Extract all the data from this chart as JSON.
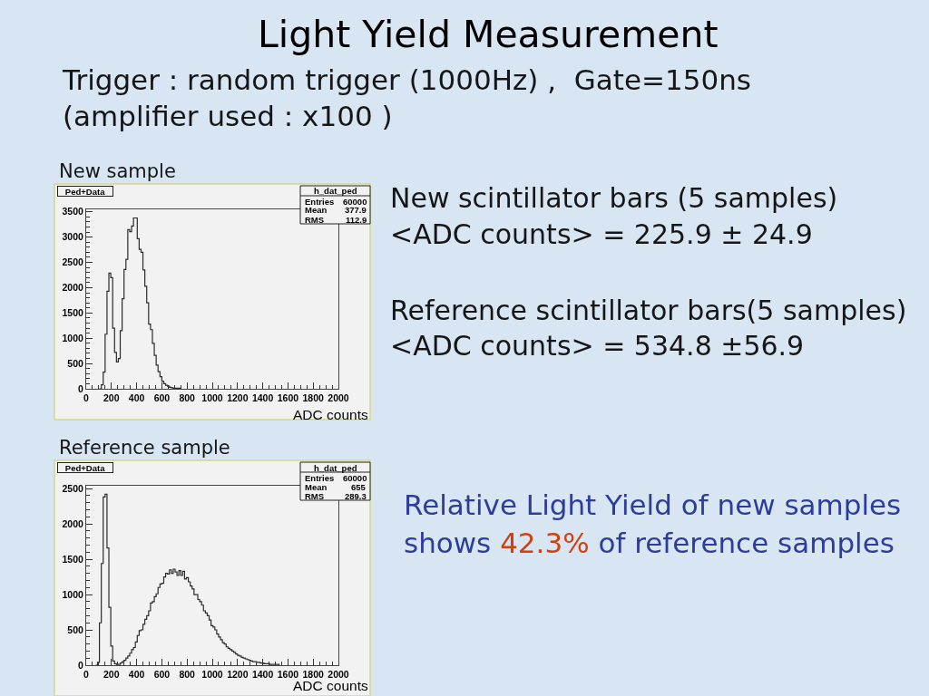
{
  "chart_data": [
    {
      "type": "other",
      "title": "Light Yield Measurement",
      "subtitle": "Trigger : random trigger (1000Hz) ,  Gate=150ns\n(amplifier used : x100 )",
      "annotations": [
        "New scintillator bars (5 samples)",
        "<ADC counts> = 225.9 ± 24.9",
        "Reference scintillator bars(5 samples)",
        "<ADC counts> = 534.8 ±56.9",
        "Relative Light Yield of new samples",
        "shows",
        "42.3%",
        "of reference samples"
      ]
    },
    {
      "type": "step",
      "title": "New sample",
      "subtitle": "Ped+Data",
      "xlabel": "ADC counts",
      "annotations": [
        "h_dat_ped",
        "Entries 60000",
        "Mean 377.9",
        "RMS 112.9"
      ],
      "x": [
        105,
        120,
        135,
        150,
        165,
        180,
        195,
        210,
        225,
        240,
        255,
        270,
        285,
        300,
        315,
        330,
        345,
        360,
        375,
        390,
        405,
        420,
        435,
        450,
        465,
        480,
        495,
        510,
        525,
        540,
        555,
        570,
        585,
        600,
        615,
        630,
        645,
        660,
        675,
        690,
        705,
        720,
        735,
        750
      ],
      "values": [
        0,
        80,
        330,
        1080,
        1930,
        2290,
        2200,
        1200,
        720,
        530,
        600,
        1150,
        1780,
        2360,
        2560,
        3150,
        3110,
        3220,
        3380,
        3380,
        2970,
        2760,
        2700,
        2350,
        2030,
        1700,
        1280,
        1170,
        900,
        660,
        470,
        340,
        240,
        150,
        100,
        70,
        50,
        30,
        20,
        10,
        10,
        10,
        10,
        0
      ],
      "color": "#2b2b2b",
      "grid": false,
      "xlim": [
        0,
        2000
      ],
      "ylim": [
        0,
        3550
      ],
      "xticks": [
        0,
        {
          "value": 50,
          "label": null
        },
        {
          "value": 100,
          "label": null
        },
        {
          "value": 150,
          "label": null
        },
        200,
        {
          "value": 250,
          "label": null
        },
        {
          "value": 300,
          "label": null
        },
        {
          "value": 350,
          "label": null
        },
        400,
        {
          "value": 450,
          "label": null
        },
        {
          "value": 500,
          "label": null
        },
        {
          "value": 550,
          "label": null
        },
        600,
        {
          "value": 650,
          "label": null
        },
        {
          "value": 700,
          "label": null
        },
        {
          "value": 750,
          "label": null
        },
        800,
        {
          "value": 850,
          "label": null
        },
        {
          "value": 900,
          "label": null
        },
        {
          "value": 950,
          "label": null
        },
        1000,
        {
          "value": 1050,
          "label": null
        },
        {
          "value": 1100,
          "label": null
        },
        {
          "value": 1150,
          "label": null
        },
        1200,
        {
          "value": 1250,
          "label": null
        },
        {
          "value": 1300,
          "label": null
        },
        {
          "value": 1350,
          "label": null
        },
        1400,
        {
          "value": 1450,
          "label": null
        },
        {
          "value": 1500,
          "label": null
        },
        {
          "value": 1550,
          "label": null
        },
        1600,
        {
          "value": 1650,
          "label": null
        },
        {
          "value": 1700,
          "label": null
        },
        {
          "value": 1750,
          "label": null
        },
        1800,
        {
          "value": 1850,
          "label": null
        },
        {
          "value": 1900,
          "label": null
        },
        {
          "value": 1950,
          "label": null
        },
        2000
      ],
      "yticks": [
        0,
        {
          "value": 100,
          "label": null
        },
        {
          "value": 200,
          "label": null
        },
        {
          "value": 300,
          "label": null
        },
        {
          "value": 400,
          "label": null
        },
        500,
        {
          "value": 600,
          "label": null
        },
        {
          "value": 700,
          "label": null
        },
        {
          "value": 800,
          "label": null
        },
        {
          "value": 900,
          "label": null
        },
        1000,
        {
          "value": 1100,
          "label": null
        },
        {
          "value": 1200,
          "label": null
        },
        {
          "value": 1300,
          "label": null
        },
        {
          "value": 1400,
          "label": null
        },
        1500,
        {
          "value": 1600,
          "label": null
        },
        {
          "value": 1700,
          "label": null
        },
        {
          "value": 1800,
          "label": null
        },
        {
          "value": 1900,
          "label": null
        },
        2000,
        {
          "value": 2100,
          "label": null
        },
        {
          "value": 2200,
          "label": null
        },
        {
          "value": 2300,
          "label": null
        },
        {
          "value": 2400,
          "label": null
        },
        2500,
        {
          "value": 2600,
          "label": null
        },
        {
          "value": 2700,
          "label": null
        },
        {
          "value": 2800,
          "label": null
        },
        {
          "value": 2900,
          "label": null
        },
        3000,
        {
          "value": 3100,
          "label": null
        },
        {
          "value": 3200,
          "label": null
        },
        {
          "value": 3300,
          "label": null
        },
        {
          "value": 3400,
          "label": null
        },
        3500
      ]
    },
    {
      "type": "step",
      "title": "Reference sample",
      "subtitle": "Ped+Data",
      "xlabel": "ADC counts",
      "annotations": [
        "h_dat_ped",
        "Entries 60000",
        "Mean 655",
        "RMS 289.3"
      ],
      "x": [
        75,
        90,
        105,
        120,
        135,
        150,
        165,
        180,
        195,
        210,
        225,
        240,
        255,
        270,
        285,
        300,
        315,
        330,
        345,
        360,
        375,
        390,
        405,
        420,
        435,
        450,
        465,
        480,
        495,
        510,
        525,
        540,
        555,
        570,
        585,
        600,
        615,
        630,
        645,
        660,
        675,
        690,
        705,
        720,
        735,
        750,
        765,
        780,
        795,
        810,
        825,
        840,
        855,
        870,
        885,
        900,
        915,
        930,
        945,
        960,
        975,
        990,
        1005,
        1020,
        1035,
        1050,
        1065,
        1080,
        1095,
        1110,
        1125,
        1140,
        1155,
        1170,
        1185,
        1200,
        1215,
        1230,
        1245,
        1260,
        1275,
        1290,
        1305,
        1320,
        1335,
        1350,
        1365,
        1380,
        1395,
        1410,
        1425,
        1440,
        1455,
        1470,
        1485,
        1500,
        1515,
        1530
      ],
      "values": [
        0,
        40,
        600,
        1440,
        2380,
        2420,
        1660,
        820,
        270,
        60,
        20,
        10,
        10,
        30,
        50,
        70,
        100,
        130,
        170,
        220,
        250,
        330,
        420,
        490,
        500,
        580,
        650,
        700,
        770,
        880,
        900,
        970,
        1010,
        1100,
        1150,
        1160,
        1250,
        1300,
        1290,
        1350,
        1300,
        1360,
        1320,
        1270,
        1340,
        1270,
        1330,
        1220,
        1240,
        1180,
        1120,
        1080,
        1000,
        1000,
        930,
        900,
        850,
        770,
        740,
        700,
        640,
        560,
        540,
        500,
        440,
        400,
        360,
        320,
        300,
        260,
        240,
        220,
        200,
        180,
        160,
        140,
        130,
        110,
        100,
        90,
        80,
        70,
        60,
        50,
        50,
        40,
        40,
        30,
        30,
        20,
        20,
        20,
        10,
        10,
        10,
        10,
        10,
        0
      ],
      "color": "#2b2b2b",
      "grid": false,
      "xlim": [
        0,
        2000
      ],
      "ylim": [
        0,
        2540
      ],
      "xticks": [
        0,
        {
          "value": 50,
          "label": null
        },
        {
          "value": 100,
          "label": null
        },
        {
          "value": 150,
          "label": null
        },
        200,
        {
          "value": 250,
          "label": null
        },
        {
          "value": 300,
          "label": null
        },
        {
          "value": 350,
          "label": null
        },
        400,
        {
          "value": 450,
          "label": null
        },
        {
          "value": 500,
          "label": null
        },
        {
          "value": 550,
          "label": null
        },
        600,
        {
          "value": 650,
          "label": null
        },
        {
          "value": 700,
          "label": null
        },
        {
          "value": 750,
          "label": null
        },
        800,
        {
          "value": 850,
          "label": null
        },
        {
          "value": 900,
          "label": null
        },
        {
          "value": 950,
          "label": null
        },
        1000,
        {
          "value": 1050,
          "label": null
        },
        {
          "value": 1100,
          "label": null
        },
        {
          "value": 1150,
          "label": null
        },
        1200,
        {
          "value": 1250,
          "label": null
        },
        {
          "value": 1300,
          "label": null
        },
        {
          "value": 1350,
          "label": null
        },
        1400,
        {
          "value": 1450,
          "label": null
        },
        {
          "value": 1500,
          "label": null
        },
        {
          "value": 1550,
          "label": null
        },
        1600,
        {
          "value": 1650,
          "label": null
        },
        {
          "value": 1700,
          "label": null
        },
        {
          "value": 1750,
          "label": null
        },
        1800,
        {
          "value": 1850,
          "label": null
        },
        {
          "value": 1900,
          "label": null
        },
        {
          "value": 1950,
          "label": null
        },
        2000
      ],
      "yticks": [
        0,
        {
          "value": 100,
          "label": null
        },
        {
          "value": 200,
          "label": null
        },
        {
          "value": 300,
          "label": null
        },
        {
          "value": 400,
          "label": null
        },
        500,
        {
          "value": 600,
          "label": null
        },
        {
          "value": 700,
          "label": null
        },
        {
          "value": 800,
          "label": null
        },
        {
          "value": 900,
          "label": null
        },
        1000,
        {
          "value": 1100,
          "label": null
        },
        {
          "value": 1200,
          "label": null
        },
        {
          "value": 1300,
          "label": null
        },
        {
          "value": 1400,
          "label": null
        },
        1500,
        {
          "value": 1600,
          "label": null
        },
        {
          "value": 1700,
          "label": null
        },
        {
          "value": 1800,
          "label": null
        },
        {
          "value": 1900,
          "label": null
        },
        2000,
        {
          "value": 2100,
          "label": null
        },
        {
          "value": 2200,
          "label": null
        },
        {
          "value": 2300,
          "label": null
        },
        {
          "value": 2400,
          "label": null
        },
        2500
      ]
    }
  ]
}
